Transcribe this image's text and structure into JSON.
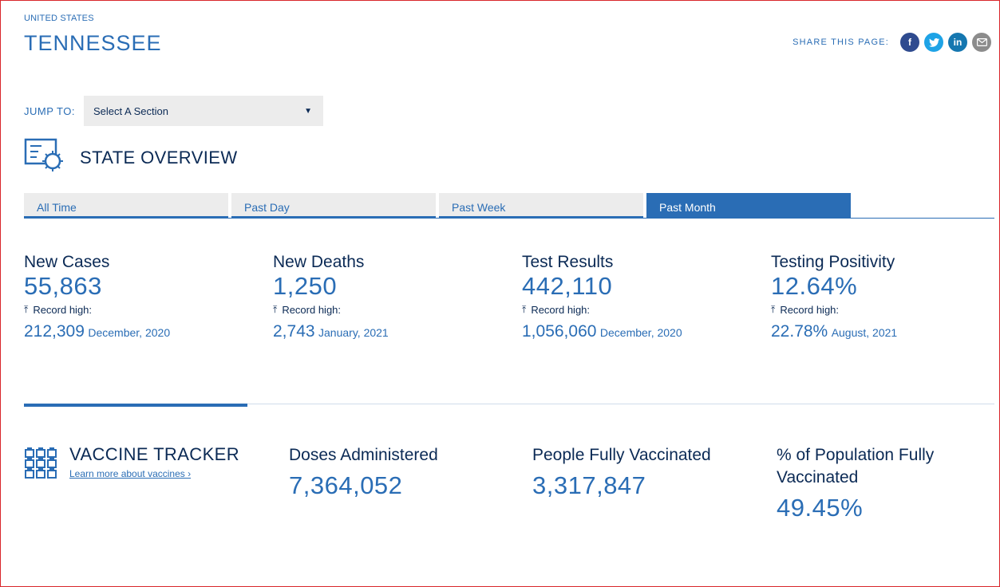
{
  "header": {
    "breadcrumb": "UNITED STATES",
    "title": "TENNESSEE",
    "share_label": "SHARE THIS PAGE:",
    "share_icons": [
      "facebook-icon",
      "twitter-icon",
      "linkedin-icon",
      "email-icon"
    ]
  },
  "jump": {
    "label": "JUMP TO:",
    "selected": "Select A Section"
  },
  "overview": {
    "title": "STATE OVERVIEW",
    "tabs": [
      {
        "label": "All Time",
        "active": false
      },
      {
        "label": "Past Day",
        "active": false
      },
      {
        "label": "Past Week",
        "active": false
      },
      {
        "label": "Past Month",
        "active": true
      }
    ],
    "stats": [
      {
        "label": "New Cases",
        "value": "55,863",
        "record_label": "Record high:",
        "record_value": "212,309",
        "record_date": "December, 2020"
      },
      {
        "label": "New Deaths",
        "value": "1,250",
        "record_label": "Record high:",
        "record_value": "2,743",
        "record_date": "January, 2021"
      },
      {
        "label": "Test Results",
        "value": "442,110",
        "record_label": "Record high:",
        "record_value": "1,056,060",
        "record_date": "December, 2020"
      },
      {
        "label": "Testing Positivity",
        "value": "12.64%",
        "record_label": "Record high:",
        "record_value": "22.78%",
        "record_date": "August, 2021"
      }
    ]
  },
  "vaccine": {
    "title": "VACCINE TRACKER",
    "link": "Learn more about vaccines ›",
    "stats": [
      {
        "label": "Doses Administered",
        "value": "7,364,052"
      },
      {
        "label": "People Fully Vaccinated",
        "value": "3,317,847"
      },
      {
        "label": "% of Population Fully Vaccinated",
        "value": "49.45%"
      }
    ]
  },
  "colors": {
    "accent": "#2a6db5",
    "navy": "#0b2a55",
    "tab_bg": "#ececec"
  }
}
